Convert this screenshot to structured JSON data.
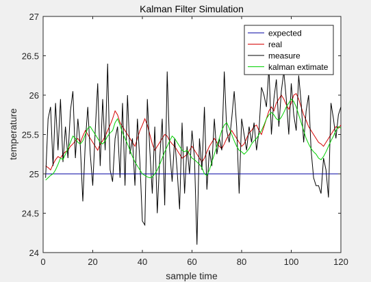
{
  "figure": {
    "background": "#f0f0f0"
  },
  "chart_data": {
    "type": "line",
    "title": "Kalman Filter Simulation",
    "xlabel": "sample time",
    "ylabel": "temperature",
    "xlim": [
      0,
      120
    ],
    "ylim": [
      24,
      27
    ],
    "xticks": [
      0,
      20,
      40,
      60,
      80,
      100,
      120
    ],
    "xtick_labels": [
      "0",
      "20",
      "40",
      "60",
      "80",
      "100",
      "120"
    ],
    "yticks": [
      24,
      24.5,
      25,
      25.5,
      26,
      26.5,
      27
    ],
    "ytick_labels": [
      "24",
      "24.5",
      "25",
      "25.5",
      "26",
      "26.5",
      "27"
    ],
    "grid": false,
    "legend_position": "top-right",
    "series": [
      {
        "name": "expected",
        "color": "#0000a0",
        "x": [
          0,
          120
        ],
        "y": [
          25,
          25
        ]
      },
      {
        "name": "real",
        "color": "#d40000",
        "x_start": 1,
        "y": [
          25.1,
          25.08,
          25.05,
          25.12,
          25.18,
          25.22,
          25.2,
          25.25,
          25.28,
          25.3,
          25.35,
          25.38,
          25.42,
          25.45,
          25.4,
          25.48,
          25.55,
          25.5,
          25.45,
          25.4,
          25.35,
          25.3,
          25.38,
          25.42,
          25.48,
          25.55,
          25.62,
          25.7,
          25.8,
          25.75,
          25.65,
          25.6,
          25.55,
          25.5,
          25.45,
          25.4,
          25.35,
          25.45,
          25.55,
          25.62,
          25.7,
          25.62,
          25.5,
          25.38,
          25.3,
          25.35,
          25.4,
          25.45,
          25.5,
          25.48,
          25.42,
          25.38,
          25.35,
          25.3,
          25.25,
          25.2,
          25.22,
          25.25,
          25.3,
          25.35,
          25.3,
          25.25,
          25.2,
          25.15,
          25.2,
          25.28,
          25.35,
          25.4,
          25.45,
          25.4,
          25.35,
          25.32,
          25.38,
          25.45,
          25.5,
          25.55,
          25.5,
          25.45,
          25.4,
          25.35,
          25.38,
          25.45,
          25.52,
          25.55,
          25.6,
          25.62,
          25.55,
          25.5,
          25.6,
          25.7,
          25.8,
          25.85,
          25.8,
          25.9,
          25.95,
          26.0,
          25.95,
          25.88,
          25.82,
          25.9,
          26.0,
          26.02,
          25.95,
          25.85,
          25.75,
          25.68,
          25.6,
          25.55,
          25.5,
          25.45,
          25.4,
          25.38,
          25.35,
          25.4,
          25.45,
          25.5,
          25.55,
          25.6,
          25.58,
          25.62
        ]
      },
      {
        "name": "measure",
        "color": "#000000",
        "x_start": 1,
        "y": [
          24.95,
          25.7,
          25.85,
          25.1,
          25.9,
          25.3,
          25.95,
          25.15,
          25.6,
          25.2,
          25.8,
          26.05,
          25.2,
          25.7,
          25.35,
          24.65,
          25.4,
          25.85,
          25.25,
          24.85,
          25.55,
          26.15,
          25.1,
          25.95,
          25.3,
          26.4,
          25.05,
          24.9,
          25.45,
          25.6,
          24.95,
          25.9,
          24.85,
          26.0,
          25.25,
          25.45,
          24.85,
          25.7,
          25.15,
          24.4,
          24.35,
          25.95,
          25.3,
          24.75,
          25.6,
          24.5,
          25.2,
          25.7,
          24.6,
          26.3,
          25.3,
          24.9,
          25.45,
          25.05,
          24.55,
          25.65,
          24.75,
          25.35,
          25.0,
          25.55,
          25.2,
          24.1,
          25.45,
          25.05,
          25.85,
          24.8,
          25.3,
          25.1,
          25.7,
          25.25,
          25.45,
          25.3,
          26.3,
          25.55,
          25.4,
          25.7,
          26.05,
          25.6,
          24.75,
          25.7,
          25.5,
          25.3,
          25.6,
          25.4,
          25.65,
          25.3,
          25.55,
          26.1,
          26.0,
          25.85,
          26.35,
          25.5,
          25.95,
          26.2,
          25.6,
          26.05,
          26.3,
          25.95,
          25.5,
          26.15,
          25.75,
          25.55,
          26.25,
          25.9,
          25.4,
          25.8,
          26.0,
          25.3,
          24.95,
          24.85,
          24.85,
          24.75,
          25.2,
          25.05,
          24.7,
          25.9,
          25.7,
          25.45,
          25.75,
          25.85
        ]
      },
      {
        "name": "kalman extimate",
        "color": "#00d000",
        "x_start": 1,
        "y": [
          24.92,
          24.95,
          24.98,
          25.0,
          25.05,
          25.12,
          25.2,
          25.18,
          25.25,
          25.32,
          25.4,
          25.48,
          25.45,
          25.4,
          25.38,
          25.42,
          25.5,
          25.58,
          25.6,
          25.55,
          25.5,
          25.45,
          25.4,
          25.38,
          25.42,
          25.48,
          25.52,
          25.55,
          25.65,
          25.7,
          25.62,
          25.52,
          25.45,
          25.38,
          25.3,
          25.22,
          25.15,
          25.1,
          25.05,
          25.0,
          24.98,
          24.96,
          24.95,
          24.96,
          25.0,
          25.05,
          25.12,
          25.2,
          25.28,
          25.35,
          25.42,
          25.48,
          25.45,
          25.4,
          25.35,
          25.3,
          25.28,
          25.3,
          25.25,
          25.2,
          25.18,
          25.15,
          25.12,
          25.08,
          25.0,
          24.98,
          25.05,
          25.15,
          25.25,
          25.35,
          25.45,
          25.55,
          25.62,
          25.65,
          25.58,
          25.5,
          25.42,
          25.35,
          25.3,
          25.28,
          25.25,
          25.28,
          25.32,
          25.38,
          25.42,
          25.45,
          25.5,
          25.55,
          25.62,
          25.7,
          25.75,
          25.78,
          25.75,
          25.7,
          25.68,
          25.72,
          25.78,
          25.85,
          25.9,
          25.95,
          25.92,
          25.85,
          25.75,
          25.65,
          25.55,
          25.45,
          25.38,
          25.32,
          25.28,
          25.25,
          25.2,
          25.18,
          25.22,
          25.28,
          25.35,
          25.42,
          25.48,
          25.55,
          25.6,
          25.58
        ]
      }
    ]
  }
}
